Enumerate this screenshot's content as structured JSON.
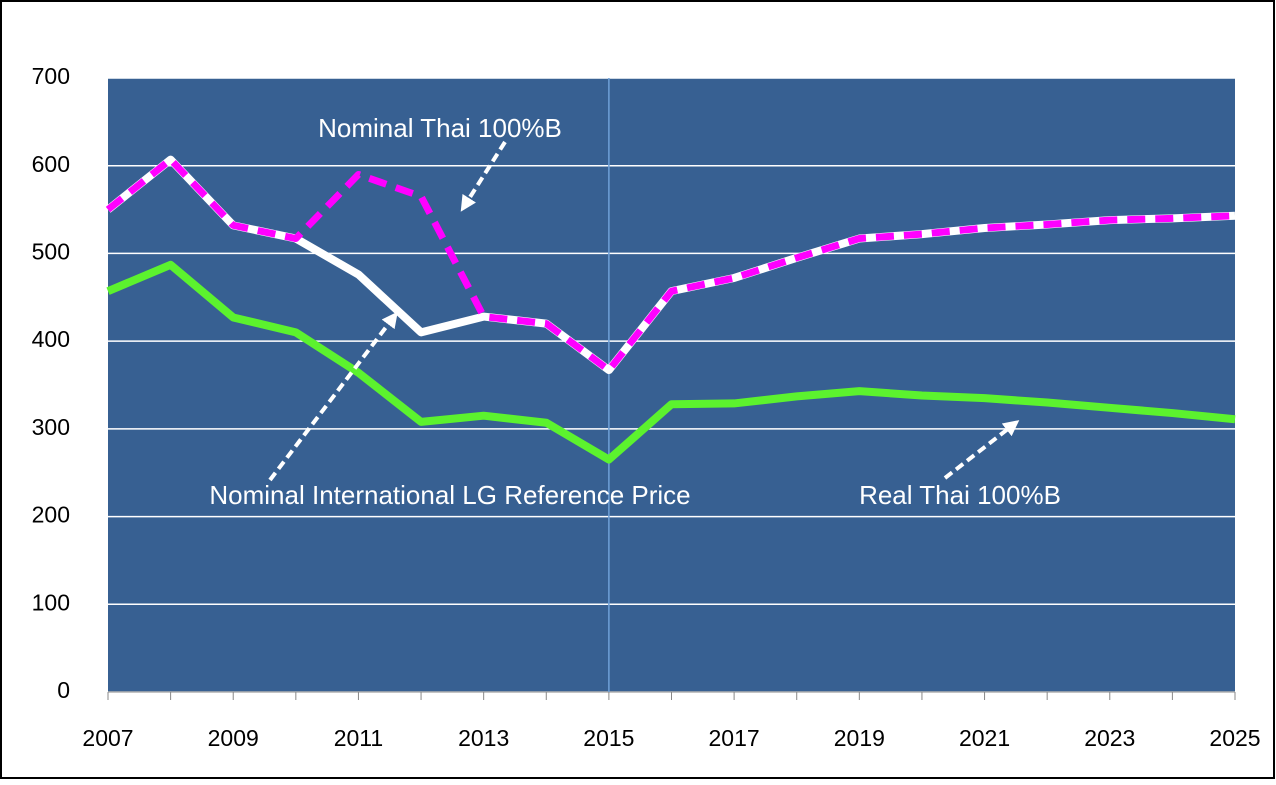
{
  "chart_data": {
    "type": "line",
    "x": [
      2007,
      2008,
      2009,
      2010,
      2011,
      2012,
      2013,
      2014,
      2015,
      2016,
      2017,
      2018,
      2019,
      2020,
      2021,
      2022,
      2023,
      2024,
      2025
    ],
    "series": [
      {
        "name": "Real Thai 100%B",
        "color": "#5cf22e",
        "dashed": false,
        "values": [
          457,
          487,
          427,
          410,
          364,
          308,
          315,
          307,
          265,
          328,
          329,
          337,
          343,
          338,
          335,
          330,
          324,
          318,
          311
        ]
      },
      {
        "name": "Nominal International LG Reference Price",
        "color": "#ffffff",
        "dashed": false,
        "values": [
          550,
          607,
          532,
          517,
          476,
          410,
          428,
          420,
          367,
          457,
          472,
          495,
          517,
          522,
          529,
          533,
          538,
          540,
          543
        ]
      },
      {
        "name": "Nominal Thai 100%B",
        "color": "#ff00ff",
        "dashed": true,
        "values": [
          550,
          607,
          532,
          517,
          590,
          565,
          428,
          420,
          367,
          457,
          472,
          495,
          517,
          522,
          529,
          533,
          538,
          540,
          543
        ]
      }
    ],
    "xlim": [
      2007,
      2025
    ],
    "xticks": [
      2007,
      2009,
      2011,
      2013,
      2015,
      2017,
      2019,
      2021,
      2023,
      2025
    ],
    "ylim": [
      0,
      700
    ],
    "yticks": [
      0,
      100,
      200,
      300,
      400,
      500,
      600,
      700
    ],
    "grid": true,
    "vline": 2015,
    "background": "#376092"
  }
}
